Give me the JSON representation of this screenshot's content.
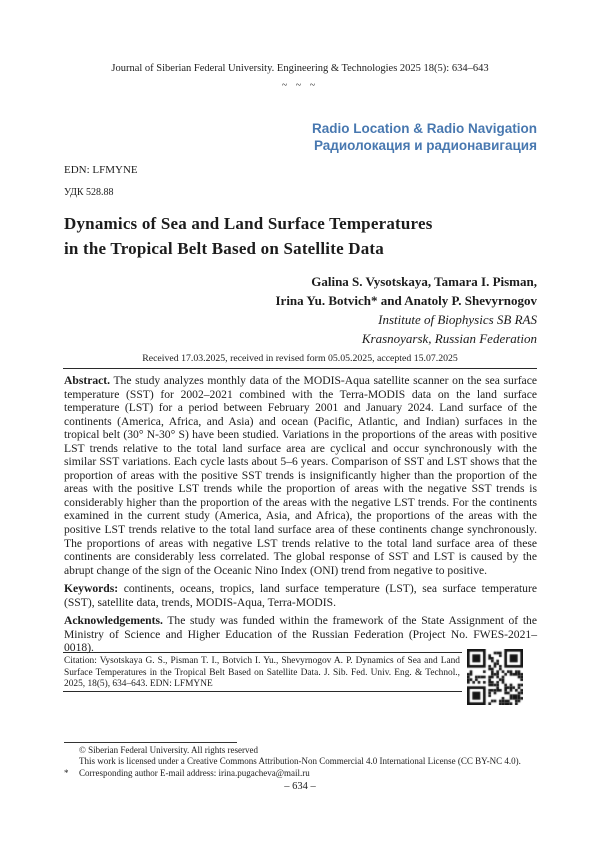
{
  "colors": {
    "section_heading_blue": "#4878b0",
    "body_text": "#1c1c1c"
  },
  "header": {
    "journal_line": "Journal of Siberian Federal University. Engineering & Technologies 2025 18(5): 634–643",
    "tilde_separator": "~ ~ ~",
    "section_en": "Radio Location & Radio Navigation",
    "section_ru": "Радиолокация и радионавигация",
    "edn": "EDN: LFMYNE",
    "udc": "УДК 528.88"
  },
  "article": {
    "title_line1": "Dynamics of Sea and Land Surface Temperatures",
    "title_line2": "in the Tropical Belt Based on Satellite Data",
    "authors_line1": "Galina S. Vysotskaya, Tamara I. Pisman,",
    "authors_line2": "Irina Yu. Botvich* and Anatoly P. Shevyrnogov",
    "affiliation_line1": "Institute of Biophysics SB RAS",
    "affiliation_line2": "Krasnoyarsk, Russian Federation",
    "received": "Received 17.03.2025, received in revised form 05.05.2025, accepted 15.07.2025",
    "abstract_label": "Abstract.",
    "abstract_text": " The study analyzes monthly data of the MODIS-Aqua satellite scanner on the sea surface temperature (SST) for 2002–2021 combined with the Terra-MODIS data on the land surface temperature (LST) for a period between February 2001 and January 2024. Land surface of the continents (America, Africa, and Asia) and ocean (Pacific, Atlantic, and Indian) surfaces in the tropical belt (30° N-30° S) have been studied. Variations in the proportions of the areas with positive LST trends relative to the total land surface area are cyclical and occur synchronously with the similar SST variations. Each cycle lasts about 5–6 years. Comparison of SST and LST shows that the proportion of areas with the positive SST trends is insignificantly higher than the proportion of the areas with the positive LST trends while the proportion of areas with the negative SST trends is considerably higher than the proportion of the areas with the negative LST trends. For the continents examined in the current study (America, Asia, and Africa), the proportions of the areas with the positive LST trends relative to the total land surface area of these continents change synchronously. The proportions of areas with negative LST trends relative to the total land surface area of these continents are considerably less correlated. The global response of SST and LST is caused by the abrupt change of the sign of the Oceanic Nino Index (ONI) trend from negative to positive.",
    "keywords_label": "Keywords:",
    "keywords_text": " continents, oceans, tropics, land surface temperature (LST), sea surface temperature (SST), satellite data, trends, MODIS-Aqua, Terra-MODIS.",
    "ack_label": "Acknowledgements.",
    "ack_text": " The study was funded within the framework of the State Assignment of the Ministry of Science and Higher Education of the Russian Federation (Project No. FWES-2021–0018).",
    "citation": "Citation: Vysotskaya G. S., Pisman T. I., Botvich I. Yu., Shevyrnogov A. P. Dynamics of Sea and Land Surface Temperatures in the Tropical Belt Based on Satellite Data. J. Sib. Fed. Univ. Eng. & Technol., 2025, 18(5), 634–643. EDN: LFMYNE"
  },
  "footer": {
    "copyright": "© Siberian Federal University. All rights reserved",
    "license": "This work is licensed under a Creative Commons Attribution-Non Commercial 4.0 International License (CC BY-NC 4.0).",
    "asterisk": "*",
    "corresponding": "Corresponding author E-mail address: irina.pugacheva@mail.ru",
    "page_number": "– 634 –"
  }
}
